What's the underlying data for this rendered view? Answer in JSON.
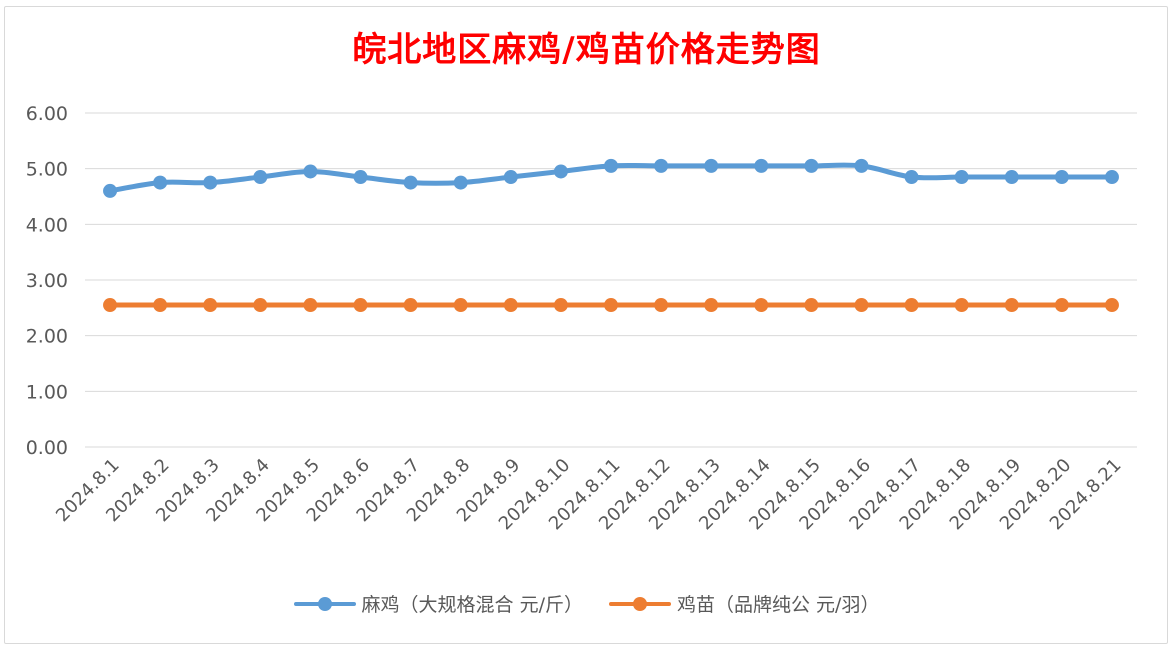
{
  "chart_data": {
    "type": "line",
    "title": "皖北地区麻鸡/鸡苗价格走势图",
    "categories": [
      "2024.8.1",
      "2024.8.2",
      "2024.8.3",
      "2024.8.4",
      "2024.8.5",
      "2024.8.6",
      "2024.8.7",
      "2024.8.8",
      "2024.8.9",
      "2024.8.10",
      "2024.8.11",
      "2024.8.12",
      "2024.8.13",
      "2024.8.14",
      "2024.8.15",
      "2024.8.16",
      "2024.8.17",
      "2024.8.18",
      "2024.8.19",
      "2024.8.20",
      "2024.8.21"
    ],
    "series": [
      {
        "name": "麻鸡（大规格混合 元/斤）",
        "color": "#5b9bd5",
        "values": [
          4.6,
          4.75,
          4.75,
          4.85,
          4.95,
          4.85,
          4.75,
          4.75,
          4.85,
          4.95,
          5.05,
          5.05,
          5.05,
          5.05,
          5.05,
          5.05,
          4.85,
          4.85,
          4.85,
          4.85,
          4.85
        ]
      },
      {
        "name": "鸡苗（品牌纯公 元/羽）",
        "color": "#ed7d31",
        "values": [
          2.55,
          2.55,
          2.55,
          2.55,
          2.55,
          2.55,
          2.55,
          2.55,
          2.55,
          2.55,
          2.55,
          2.55,
          2.55,
          2.55,
          2.55,
          2.55,
          2.55,
          2.55,
          2.55,
          2.55,
          2.55
        ]
      }
    ],
    "ylim": [
      0,
      6
    ],
    "yticks": [
      "0.00",
      "1.00",
      "2.00",
      "3.00",
      "4.00",
      "5.00",
      "6.00"
    ],
    "grid": true,
    "legend_position": "bottom"
  }
}
